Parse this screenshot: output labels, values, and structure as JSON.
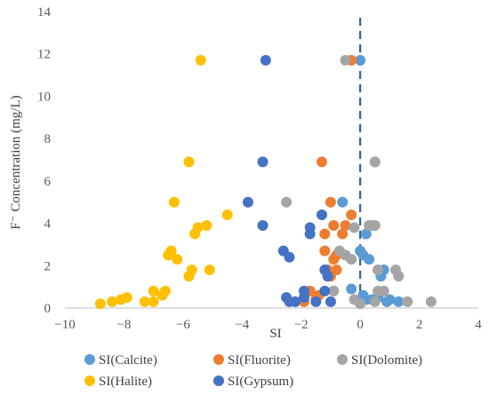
{
  "chart_data": {
    "type": "scatter",
    "title": "",
    "xlabel": "SI",
    "ylabel": "F⁻ Concentration (mg/L)",
    "xlim": [
      -10,
      4
    ],
    "ylim": [
      0,
      14
    ],
    "x_ticks": [
      "−10",
      "−8",
      "−6",
      "−4",
      "−2",
      "0",
      "2",
      "4"
    ],
    "y_ticks": [
      "0",
      "2",
      "4",
      "6",
      "8",
      "10",
      "12",
      "14"
    ],
    "grid": false,
    "reference_line": {
      "x": 0,
      "style": "dashed",
      "color": "#2e6496"
    },
    "legend_position": "bottom",
    "series": [
      {
        "name": "SI(Calcite)",
        "color": "#5b9bd5",
        "points": [
          [
            0.0,
            11.7
          ],
          [
            -0.6,
            5.0
          ],
          [
            0.5,
            6.9
          ],
          [
            0.4,
            3.9
          ],
          [
            0.2,
            3.5
          ],
          [
            0.0,
            2.7
          ],
          [
            0.1,
            2.5
          ],
          [
            0.3,
            2.3
          ],
          [
            0.6,
            1.8
          ],
          [
            0.8,
            1.8
          ],
          [
            0.7,
            1.5
          ],
          [
            -0.3,
            0.9
          ],
          [
            0.1,
            0.6
          ],
          [
            0.2,
            0.4
          ],
          [
            0.4,
            0.4
          ],
          [
            0.0,
            0.3
          ],
          [
            0.6,
            0.5
          ],
          [
            1.0,
            0.4
          ],
          [
            1.3,
            0.3
          ],
          [
            0.9,
            0.3
          ]
        ]
      },
      {
        "name": "SI(Fluorite)",
        "color": "#ed7d31",
        "points": [
          [
            -0.3,
            11.7
          ],
          [
            -1.3,
            6.9
          ],
          [
            -1.0,
            5.0
          ],
          [
            -0.3,
            4.4
          ],
          [
            -0.9,
            3.9
          ],
          [
            -0.5,
            3.9
          ],
          [
            -1.2,
            3.5
          ],
          [
            -0.6,
            3.5
          ],
          [
            -1.2,
            2.7
          ],
          [
            -0.8,
            2.5
          ],
          [
            -0.9,
            2.3
          ],
          [
            -1.1,
            1.8
          ],
          [
            -0.8,
            1.8
          ],
          [
            -1.0,
            1.5
          ],
          [
            -1.7,
            0.8
          ],
          [
            -1.4,
            0.6
          ],
          [
            -1.5,
            0.4
          ],
          [
            -1.9,
            0.3
          ],
          [
            -0.9,
            0.8
          ]
        ]
      },
      {
        "name": "SI(Dolomite)",
        "color": "#a5a5a5",
        "points": [
          [
            -0.5,
            11.7
          ],
          [
            0.5,
            6.9
          ],
          [
            -2.5,
            5.0
          ],
          [
            0.3,
            3.9
          ],
          [
            0.5,
            3.9
          ],
          [
            -0.2,
            3.8
          ],
          [
            -0.7,
            2.7
          ],
          [
            -0.5,
            2.5
          ],
          [
            -0.3,
            2.3
          ],
          [
            0.6,
            1.8
          ],
          [
            1.2,
            1.8
          ],
          [
            1.3,
            1.5
          ],
          [
            -0.9,
            0.8
          ],
          [
            0.6,
            0.8
          ],
          [
            0.8,
            0.8
          ],
          [
            -0.2,
            0.4
          ],
          [
            0.5,
            0.3
          ],
          [
            1.6,
            0.3
          ],
          [
            2.4,
            0.3
          ],
          [
            0.0,
            0.2
          ]
        ]
      },
      {
        "name": "SI(Halite)",
        "color": "#ffc000",
        "points": [
          [
            -5.4,
            11.7
          ],
          [
            -5.8,
            6.9
          ],
          [
            -6.3,
            5.0
          ],
          [
            -4.5,
            4.4
          ],
          [
            -5.2,
            3.9
          ],
          [
            -5.5,
            3.8
          ],
          [
            -5.6,
            3.5
          ],
          [
            -6.4,
            2.7
          ],
          [
            -6.5,
            2.5
          ],
          [
            -6.2,
            2.3
          ],
          [
            -5.1,
            1.8
          ],
          [
            -5.7,
            1.8
          ],
          [
            -5.8,
            1.5
          ],
          [
            -7.0,
            0.8
          ],
          [
            -6.6,
            0.8
          ],
          [
            -6.7,
            0.6
          ],
          [
            -7.9,
            0.5
          ],
          [
            -8.1,
            0.4
          ],
          [
            -8.4,
            0.3
          ],
          [
            -7.0,
            0.3
          ],
          [
            -8.8,
            0.2
          ],
          [
            -7.3,
            0.3
          ]
        ]
      },
      {
        "name": "SI(Gypsum)",
        "color": "#4472c4",
        "points": [
          [
            -3.2,
            11.7
          ],
          [
            -3.3,
            6.9
          ],
          [
            -3.8,
            5.0
          ],
          [
            -1.3,
            4.4
          ],
          [
            -3.3,
            3.9
          ],
          [
            -1.7,
            3.8
          ],
          [
            -1.7,
            3.5
          ],
          [
            -2.6,
            2.7
          ],
          [
            -2.4,
            2.4
          ],
          [
            -1.2,
            1.8
          ],
          [
            -1.1,
            1.5
          ],
          [
            -1.9,
            0.8
          ],
          [
            -1.2,
            0.8
          ],
          [
            -2.5,
            0.5
          ],
          [
            -1.9,
            0.5
          ],
          [
            -2.4,
            0.3
          ],
          [
            -1.0,
            0.3
          ],
          [
            -2.2,
            0.3
          ],
          [
            -1.5,
            0.3
          ]
        ]
      }
    ]
  }
}
